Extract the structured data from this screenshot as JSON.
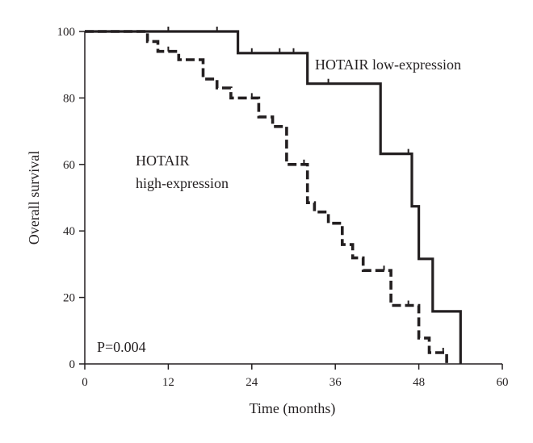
{
  "chart_data": {
    "type": "line",
    "title": "",
    "xlabel": "Time (months)",
    "ylabel": "Overall survival",
    "xlim": [
      0,
      60
    ],
    "ylim": [
      0,
      100
    ],
    "x_ticks": [
      0,
      12,
      24,
      36,
      48,
      60
    ],
    "y_ticks": [
      0,
      20,
      40,
      60,
      80,
      100
    ],
    "grid": false,
    "line_color": "#231f20",
    "series": [
      {
        "name": "HOTAIR low-expression",
        "style": "solid",
        "step_x": [
          0,
          22,
          22,
          32,
          32,
          42.5,
          42.5,
          47,
          47,
          48,
          48,
          50,
          50,
          54,
          54
        ],
        "step_y": [
          100,
          100,
          93.5,
          93.5,
          84.3,
          84.3,
          63.2,
          63.2,
          47.4,
          47.4,
          31.6,
          31.6,
          15.8,
          15.8,
          0
        ],
        "censored": [
          [
            12,
            100
          ],
          [
            19,
            100
          ],
          [
            24,
            93.5
          ],
          [
            28,
            93.5
          ],
          [
            30,
            93.5
          ],
          [
            35,
            84.3
          ],
          [
            46.5,
            63.2
          ]
        ]
      },
      {
        "name": "HOTAIR high-expression",
        "style": "dashed",
        "step_x": [
          0,
          9,
          9,
          10.5,
          10.5,
          13.5,
          13.5,
          17,
          17,
          19,
          19,
          21,
          21,
          25,
          25,
          27,
          27,
          29,
          29,
          32,
          32,
          33,
          33,
          35,
          35,
          37,
          37,
          38.5,
          38.5,
          40,
          40,
          44,
          44,
          48,
          48,
          49.5,
          49.5,
          52,
          52
        ],
        "step_y": [
          100,
          100,
          97,
          97,
          94,
          94,
          91.5,
          91.5,
          85.7,
          85.7,
          83,
          83,
          80,
          80,
          74.3,
          74.3,
          71.4,
          71.4,
          60,
          60,
          48.5,
          48.5,
          45.7,
          45.7,
          42.3,
          42.3,
          35.9,
          35.9,
          31.9,
          31.9,
          28.1,
          28.1,
          17.6,
          17.6,
          7.8,
          7.8,
          3.4,
          3.4,
          0
        ],
        "censored": [
          [
            12,
            94
          ],
          [
            24,
            80
          ],
          [
            31.5,
            60
          ],
          [
            43,
            28.1
          ],
          [
            46.5,
            17.6
          ],
          [
            51.5,
            3.4
          ]
        ]
      }
    ],
    "annotations": [
      {
        "text": "HOTAIR low-expression"
      },
      {
        "text": "HOTAIR"
      },
      {
        "text": "high-expression"
      },
      {
        "text": "P=0.004"
      }
    ]
  }
}
